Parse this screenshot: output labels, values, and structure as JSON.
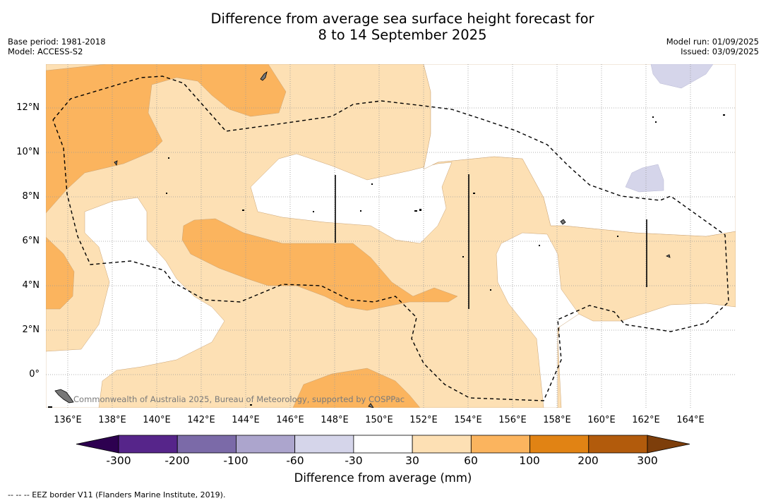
{
  "title_line1": "Difference from average sea surface height forecast for",
  "title_line2": "8 to 14 September 2025",
  "base_period": "Base period: 1981-2018",
  "model": "Model: ACCESS-S2",
  "model_run": "Model run: 01/09/2025",
  "issued": "Issued: 03/09/2025",
  "credit": "Commonwealth of Australia 2025, Bureau of Meteorology, supported by COSPPac",
  "lon_ticks": [
    "136°E",
    "138°E",
    "140°E",
    "142°E",
    "144°E",
    "146°E",
    "148°E",
    "150°E",
    "152°E",
    "154°E",
    "156°E",
    "158°E",
    "160°E",
    "162°E",
    "164°E"
  ],
  "lat_ticks": [
    "12°N",
    "10°N",
    "8°N",
    "6°N",
    "4°N",
    "2°N",
    "0°"
  ],
  "colorbar": {
    "label": "Difference from average (mm)",
    "ticks": [
      "-300",
      "-200",
      "-100",
      "-60",
      "-30",
      "30",
      "60",
      "100",
      "200",
      "300"
    ],
    "colors": [
      "#56258a",
      "#7b6aa8",
      "#aca5cd",
      "#d5d5ea",
      "#ffffff",
      "#fde0b4",
      "#fbb45e",
      "#e18314",
      "#b25b0c"
    ],
    "under_color": "#2d0050",
    "over_color": "#7d3e0b"
  },
  "footnote": "--  --  -- EEZ border V11 (Flanders Marine Institute, 2019).",
  "map_extent": {
    "lon_min": 135.0,
    "lon_max": 165.8,
    "lat_min": -1.5,
    "lat_max": 13.9
  },
  "legend_entries": [
    {
      "style": "dashed",
      "label": "EEZ border V11 (Flanders Marine Institute, 2019)."
    }
  ]
}
